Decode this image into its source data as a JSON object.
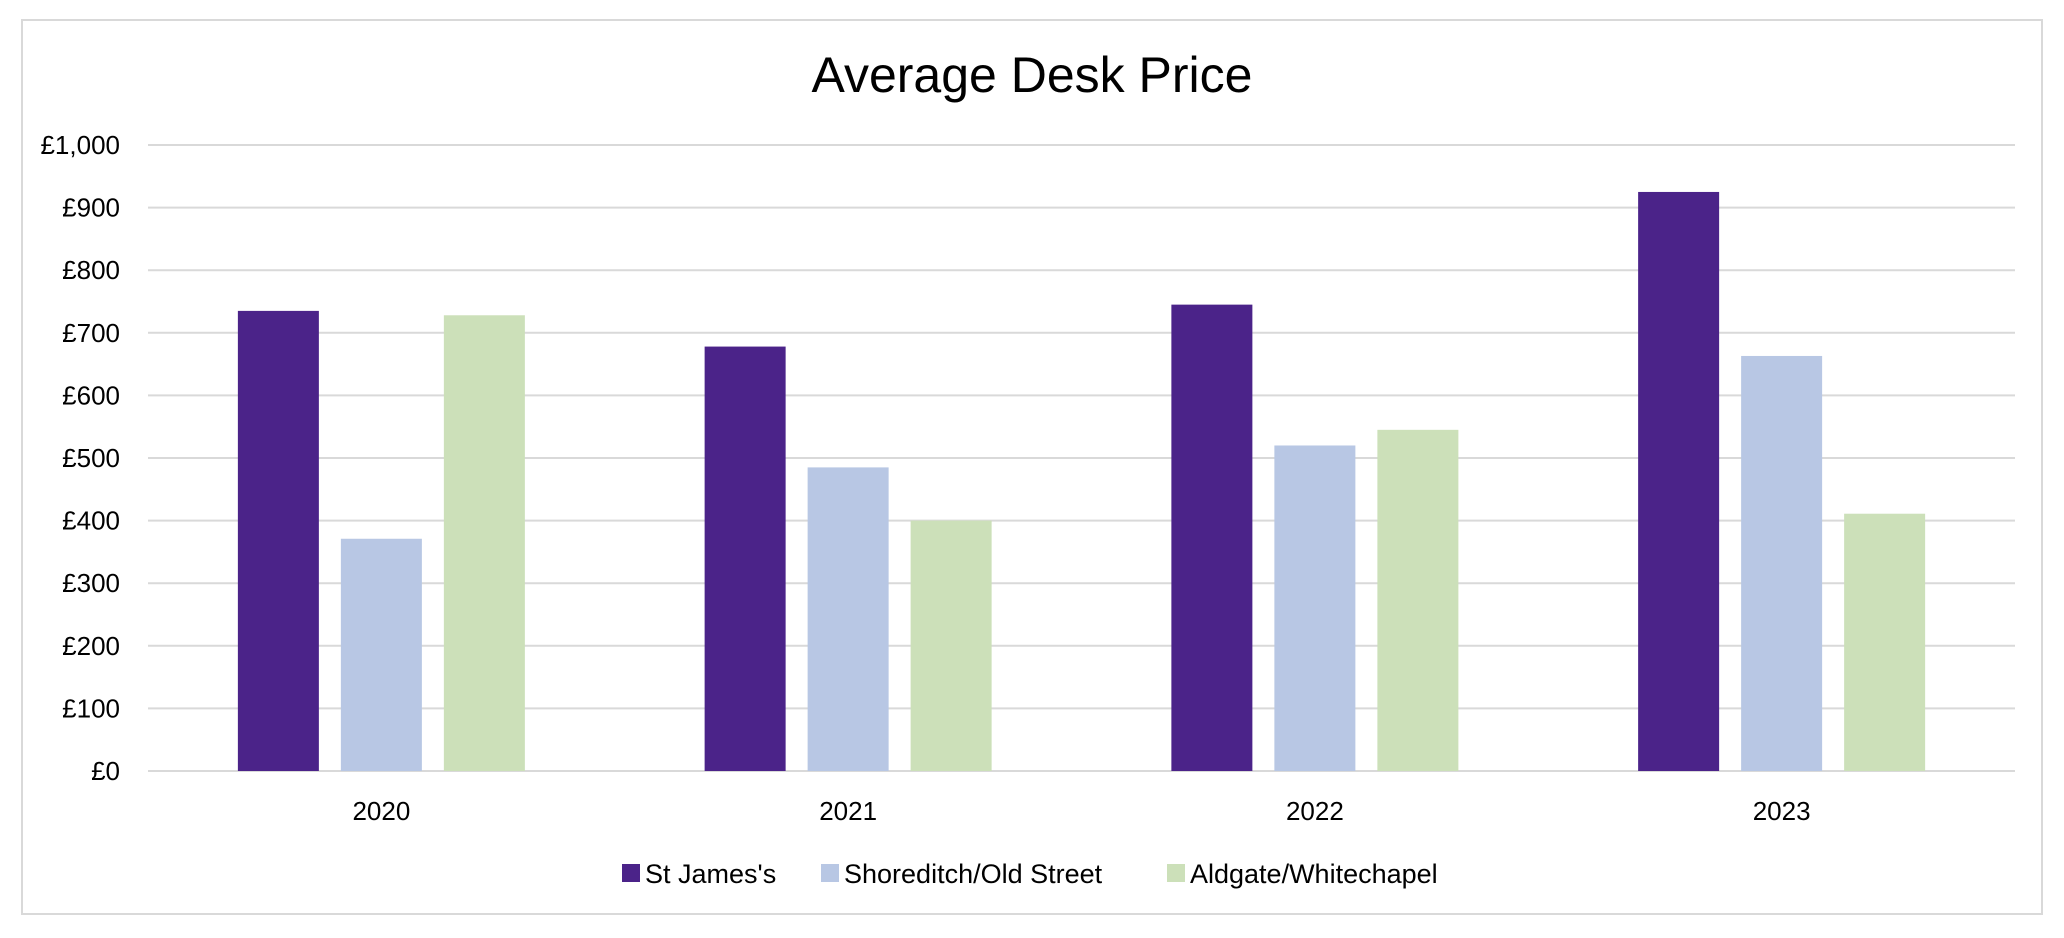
{
  "chart_data": {
    "type": "bar",
    "title": "Average Desk Price",
    "xlabel": "",
    "ylabel": "",
    "categories": [
      "2020",
      "2021",
      "2022",
      "2023"
    ],
    "series": [
      {
        "name": "St James's",
        "color": "#4b2389",
        "values": [
          735,
          678,
          745,
          925
        ]
      },
      {
        "name": "Shoreditch/Old Street",
        "color": "#b8c7e4",
        "values": [
          371,
          485,
          520,
          663
        ]
      },
      {
        "name": "Aldgate/Whitechapel",
        "color": "#cce0b9",
        "values": [
          728,
          400,
          545,
          411
        ]
      }
    ],
    "ylim": [
      0,
      1000
    ],
    "yticks": [
      0,
      100,
      200,
      300,
      400,
      500,
      600,
      700,
      800,
      900,
      1000
    ],
    "ytick_labels": [
      "£0",
      "£100",
      "£200",
      "£300",
      "£400",
      "£500",
      "£600",
      "£700",
      "£800",
      "£900",
      "£1,000"
    ],
    "grid": true,
    "legend_position": "bottom",
    "gridline_color": "#d9d9d9"
  }
}
